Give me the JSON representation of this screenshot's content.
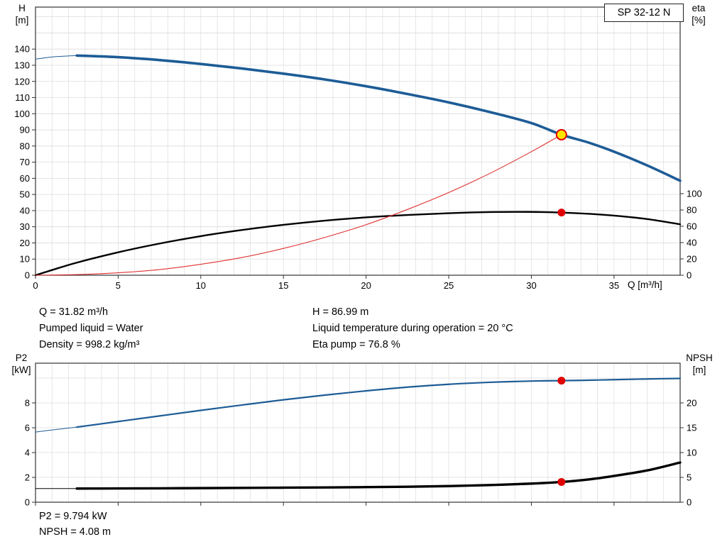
{
  "title_box": {
    "label": "SP 32-12 N"
  },
  "colors": {
    "grid": "#dcdcdc",
    "frame": "#333333",
    "curve_blue": "#1d5c96",
    "curve_black": "#000000",
    "curve_red": "#e03030",
    "marker_red": "#e00000",
    "marker_yellow": "#ffe500"
  },
  "axis_labels": {
    "h": [
      "H",
      "[m]"
    ],
    "eta": [
      "eta",
      "[%]"
    ],
    "q": "Q [m³/h]",
    "p2": [
      "P2",
      "[kW]"
    ],
    "npsh": [
      "NPSH",
      "[m]"
    ]
  },
  "info_top": {
    "col1": [
      "Q = 31.82 m³/h",
      "Pumped liquid = Water",
      "Density = 998.2 kg/m³"
    ],
    "col2": [
      "H = 86.99 m",
      "Liquid temperature during operation = 20 °C",
      "Eta pump = 76.8 %"
    ]
  },
  "info_bottom": [
    "P2 = 9.794 kW",
    "NPSH = 4.08 m"
  ],
  "chart_data": [
    {
      "type": "line",
      "title": "SP 32-12 N",
      "x": {
        "label": "Q [m³/h]",
        "min": 0,
        "max": 39,
        "major_ticks": [
          0,
          5,
          10,
          15,
          20,
          25,
          30,
          35
        ],
        "minor_step": 1
      },
      "y_left": {
        "label": "H [m]",
        "min": 0,
        "max": 166,
        "ticks": [
          0,
          10,
          20,
          30,
          40,
          50,
          60,
          70,
          80,
          90,
          100,
          110,
          120,
          130,
          140
        ],
        "grid_ticks": [
          10,
          20,
          30,
          40,
          50,
          60,
          70,
          80,
          90,
          100,
          110,
          120,
          130,
          140,
          150,
          160
        ]
      },
      "y_right": {
        "label": "eta [%]",
        "ticks": [
          0,
          20,
          40,
          60,
          80,
          100
        ],
        "left_units_per_unit": 0.505
      },
      "series": [
        {
          "name": "head-curve-low-flow",
          "axis": "left",
          "color": "#1d5c96",
          "width": 1,
          "points": [
            [
              0,
              133.8
            ],
            [
              1.2,
              135.3
            ],
            [
              2.5,
              136
            ]
          ]
        },
        {
          "name": "head-curve",
          "axis": "left",
          "color": "#1d5c96",
          "width": 3.6,
          "points": [
            [
              2.5,
              136
            ],
            [
              5,
              135
            ],
            [
              7.5,
              133.2
            ],
            [
              10,
              130.8
            ],
            [
              12.5,
              128
            ],
            [
              15,
              124.8
            ],
            [
              17.5,
              121.2
            ],
            [
              20,
              117
            ],
            [
              22.5,
              112.2
            ],
            [
              25,
              107
            ],
            [
              27.5,
              101
            ],
            [
              30,
              94.2
            ],
            [
              31.82,
              87
            ],
            [
              33.5,
              82
            ],
            [
              35,
              76.5
            ],
            [
              37,
              68
            ],
            [
              39,
              58.5
            ]
          ]
        },
        {
          "name": "efficiency-curve",
          "axis": "left",
          "color": "#000000",
          "width": 2.4,
          "points": [
            [
              0,
              0
            ],
            [
              1,
              3.2
            ],
            [
              2.5,
              7.8
            ],
            [
              5,
              14.2
            ],
            [
              7.5,
              19.6
            ],
            [
              10,
              24.2
            ],
            [
              12.5,
              28
            ],
            [
              15,
              31.2
            ],
            [
              17.5,
              33.8
            ],
            [
              20,
              35.8
            ],
            [
              22.5,
              37.3
            ],
            [
              25,
              38.4
            ],
            [
              27.5,
              39.1
            ],
            [
              30,
              39.2
            ],
            [
              31.82,
              38.8
            ],
            [
              33.5,
              38
            ],
            [
              35,
              36.9
            ],
            [
              37,
              34.8
            ],
            [
              39,
              31.5
            ]
          ]
        },
        {
          "name": "relative-power-curve",
          "axis": "left",
          "color": "#e03030",
          "width": 1.1,
          "points": [
            [
              0,
              0
            ],
            [
              2.5,
              0.4
            ],
            [
              5,
              1.5
            ],
            [
              7.5,
              3.5
            ],
            [
              10,
              6.8
            ],
            [
              12.5,
              11
            ],
            [
              15,
              16.6
            ],
            [
              17.5,
              23.4
            ],
            [
              20,
              31.3
            ],
            [
              22.5,
              40.7
            ],
            [
              25,
              51.2
            ],
            [
              27.5,
              63.1
            ],
            [
              30,
              76.5
            ],
            [
              31.82,
              87
            ]
          ]
        }
      ],
      "markers": [
        {
          "name": "duty-point-head",
          "x": 31.82,
          "y": 86.99,
          "axis": "left",
          "r": 7,
          "fill": "#ffe500",
          "stroke": "#e00000"
        },
        {
          "name": "duty-point-eta",
          "x": 31.82,
          "y": 38.8,
          "axis": "left",
          "r": 5.5,
          "fill": "#e00000"
        }
      ]
    },
    {
      "type": "line",
      "title": "P2 / NPSH",
      "x": {
        "label": "",
        "min": 0,
        "max": 39,
        "major_ticks": [
          0,
          5,
          10,
          15,
          20,
          25,
          30,
          35
        ],
        "minor_step": 1
      },
      "y_left": {
        "label": "P2 [kW]",
        "min": 0,
        "max": 11.2,
        "ticks": [
          0,
          2,
          4,
          6,
          8
        ],
        "grid_ticks": [
          2,
          4,
          6,
          8,
          10
        ]
      },
      "y_right": {
        "label": "NPSH [m]",
        "ticks": [
          0,
          5,
          10,
          15,
          20
        ],
        "left_units_per_unit": 0.4
      },
      "series": [
        {
          "name": "p2-curve-low-flow",
          "axis": "left",
          "color": "#1d5c96",
          "width": 1,
          "points": [
            [
              0,
              5.65
            ],
            [
              1.2,
              5.85
            ],
            [
              2.5,
              6.05
            ]
          ]
        },
        {
          "name": "p2-curve",
          "axis": "left",
          "color": "#1d5c96",
          "width": 2.2,
          "points": [
            [
              2.5,
              6.05
            ],
            [
              5,
              6.5
            ],
            [
              7.5,
              6.95
            ],
            [
              10,
              7.4
            ],
            [
              12.5,
              7.83
            ],
            [
              15,
              8.25
            ],
            [
              17.5,
              8.63
            ],
            [
              20,
              8.97
            ],
            [
              22.5,
              9.27
            ],
            [
              25,
              9.5
            ],
            [
              27.5,
              9.66
            ],
            [
              30,
              9.76
            ],
            [
              31.82,
              9.794
            ],
            [
              33.5,
              9.83
            ],
            [
              35,
              9.87
            ],
            [
              37,
              9.93
            ],
            [
              39,
              9.97
            ]
          ]
        },
        {
          "name": "npsh-curve-low-flow",
          "axis": "right",
          "color": "#000000",
          "width": 1,
          "points": [
            [
              0,
              2.75
            ],
            [
              2.5,
              2.75
            ]
          ]
        },
        {
          "name": "npsh-curve",
          "axis": "right",
          "color": "#000000",
          "width": 3.4,
          "points": [
            [
              2.5,
              2.75
            ],
            [
              5,
              2.77
            ],
            [
              7.5,
              2.8
            ],
            [
              10,
              2.84
            ],
            [
              12.5,
              2.88
            ],
            [
              15,
              2.93
            ],
            [
              17.5,
              2.98
            ],
            [
              20,
              3.04
            ],
            [
              22.5,
              3.12
            ],
            [
              25,
              3.25
            ],
            [
              27.5,
              3.45
            ],
            [
              30,
              3.75
            ],
            [
              31.82,
              4.08
            ],
            [
              33.5,
              4.6
            ],
            [
              35,
              5.3
            ],
            [
              37,
              6.4
            ],
            [
              39,
              8.0
            ]
          ]
        }
      ],
      "markers": [
        {
          "name": "duty-point-p2",
          "x": 31.82,
          "y": 9.794,
          "axis": "left",
          "r": 5.5,
          "fill": "#e00000"
        },
        {
          "name": "duty-point-npsh",
          "x": 31.82,
          "y": 4.08,
          "axis": "right",
          "r": 5.5,
          "fill": "#e00000"
        }
      ]
    }
  ]
}
